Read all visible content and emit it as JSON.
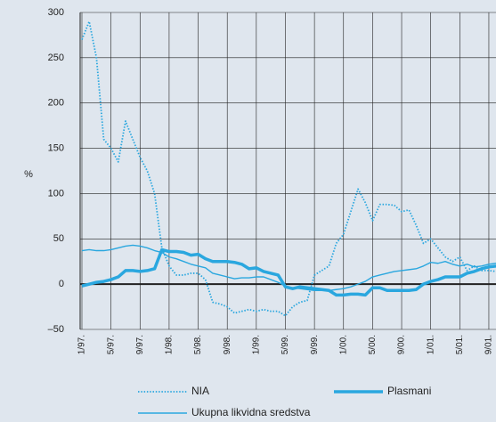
{
  "chart_data": {
    "type": "line",
    "y_label": "%",
    "categories": [
      "1/97.",
      null,
      null,
      null,
      "5/97.",
      null,
      null,
      null,
      "9/97.",
      null,
      null,
      null,
      "1/98.",
      null,
      null,
      null,
      "5/98.",
      null,
      null,
      null,
      "9/98.",
      null,
      null,
      null,
      "1/99.",
      null,
      null,
      null,
      "5/99.",
      null,
      null,
      null,
      "9/99.",
      null,
      null,
      null,
      "1/00.",
      null,
      null,
      null,
      "5/00.",
      null,
      null,
      null,
      "9/00.",
      null,
      null,
      null,
      "1/01.",
      null,
      null,
      null,
      "5/01.",
      null,
      null,
      null,
      "9/01.",
      null
    ],
    "series": [
      {
        "name": "NIA",
        "color": "#2aa7df",
        "style": "dotted",
        "values": [
          270,
          290,
          250,
          160,
          150,
          135,
          180,
          160,
          140,
          125,
          100,
          40,
          20,
          10,
          10,
          12,
          12,
          5,
          -20,
          -22,
          -25,
          -32,
          -30,
          -28,
          -30,
          -28,
          -30,
          -30,
          -35,
          -25,
          -20,
          -18,
          10,
          15,
          20,
          45,
          55,
          80,
          105,
          90,
          70,
          88,
          88,
          87,
          80,
          82,
          65,
          45,
          50,
          40,
          30,
          25,
          30,
          15,
          20,
          15,
          15,
          14
        ]
      },
      {
        "name": "Plasmani",
        "color": "#2aa7df",
        "style": "thick",
        "values": [
          -2,
          0,
          2,
          3,
          5,
          8,
          15,
          15,
          14,
          15,
          17,
          38,
          36,
          36,
          35,
          32,
          33,
          28,
          25,
          25,
          25,
          24,
          22,
          17,
          18,
          14,
          12,
          10,
          -3,
          -5,
          -3,
          -4,
          -5,
          -6,
          -7,
          -12,
          -12,
          -11,
          -11,
          -12,
          -4,
          -4,
          -7,
          -7,
          -7,
          -7,
          -6,
          0,
          3,
          5,
          8,
          8,
          8,
          12,
          14,
          17,
          19,
          20
        ]
      },
      {
        "name": "Ukupna likvidna sredstva",
        "color": "#2aa7df",
        "style": "thin",
        "values": [
          37,
          38,
          37,
          37,
          38,
          40,
          42,
          43,
          42,
          40,
          37,
          35,
          30,
          28,
          25,
          22,
          20,
          18,
          12,
          10,
          8,
          6,
          7,
          7,
          8,
          8,
          5,
          2,
          -2,
          -4,
          -5,
          -6,
          -7,
          -7,
          -7,
          -6,
          -5,
          -3,
          0,
          3,
          8,
          10,
          12,
          14,
          15,
          16,
          17,
          20,
          24,
          23,
          25,
          22,
          20,
          22,
          19,
          20,
          22,
          23
        ]
      }
    ],
    "ylim": [
      -50,
      300
    ],
    "yticks": [
      {
        "value": -50,
        "label": "–50"
      },
      0,
      50,
      100,
      150,
      200,
      250,
      300
    ],
    "grid": true
  }
}
